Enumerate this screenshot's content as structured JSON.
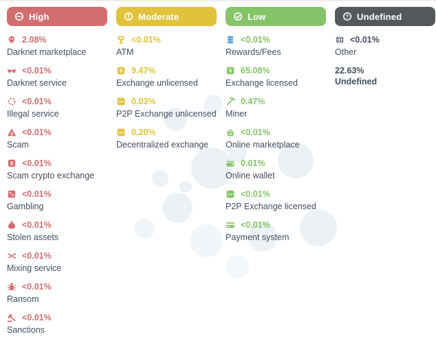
{
  "page": {
    "text_color": "#414d5e",
    "background_color": "#ffffff",
    "decor_circle_color": "#e9eff4"
  },
  "columns": [
    {
      "id": "high",
      "label": "High",
      "color": "#d16e70",
      "badge_icon": "minus-circle-icon",
      "items": [
        {
          "icon": "skull-icon",
          "percent": "2.08%",
          "label": "Darknet marketplace"
        },
        {
          "icon": "mask-icon",
          "percent": "<0.01%",
          "label": "Darknet service"
        },
        {
          "icon": "dashed-circle-icon",
          "percent": "<0.01%",
          "label": "Illegal service"
        },
        {
          "icon": "warning-triangle-icon",
          "percent": "<0.01%",
          "label": "Scam"
        },
        {
          "icon": "dollar-square-icon",
          "percent": "<0.01%",
          "label": "Scam crypto exchange"
        },
        {
          "icon": "dice-icon",
          "percent": "<0.01%",
          "label": "Gambling"
        },
        {
          "icon": "money-bag-icon",
          "percent": "<0.01%",
          "label": "Stolen assets"
        },
        {
          "icon": "shuffle-icon",
          "percent": "<0.01%",
          "label": "Mixing service"
        },
        {
          "icon": "bug-icon",
          "percent": "<0.01%",
          "label": "Ransom"
        },
        {
          "icon": "gavel-icon",
          "percent": "<0.01%",
          "label": "Sanctions"
        }
      ]
    },
    {
      "id": "moderate",
      "label": "Moderate",
      "color": "#e0c33b",
      "badge_icon": "exclamation-circle-icon",
      "items": [
        {
          "icon": "atm-icon",
          "percent": "<0.01%",
          "label": "ATM"
        },
        {
          "icon": "dollar-square-icon",
          "percent": "9.47%",
          "label": "Exchange unlicensed"
        },
        {
          "icon": "p2p-square-icon",
          "percent": "0.03%",
          "label": "P2P Exchange unlicensed"
        },
        {
          "icon": "dex-square-icon",
          "percent": "0.20%",
          "label": "Decentralized exchange"
        }
      ]
    },
    {
      "id": "low",
      "label": "Low",
      "color": "#85c468",
      "badge_icon": "check-circle-icon",
      "items": [
        {
          "icon": "coins-stack-icon",
          "icon_color": "#4b9fd8",
          "percent": "<0.01%",
          "label": "Rewards/Fees"
        },
        {
          "icon": "dollar-square-icon",
          "percent": "65.08%",
          "label": "Exchange licensed"
        },
        {
          "icon": "pickaxe-icon",
          "percent": "0.47%",
          "label": "Miner"
        },
        {
          "icon": "basket-icon",
          "percent": "<0.01%",
          "label": "Online marketplace"
        },
        {
          "icon": "wallet-icon",
          "percent": "0.01%",
          "label": "Online wallet"
        },
        {
          "icon": "p2p-square-icon",
          "percent": "<0.01%",
          "label": "P2P Exchange licensed"
        },
        {
          "icon": "credit-card-icon",
          "percent": "<0.01%",
          "label": "Payment system"
        }
      ]
    },
    {
      "id": "undefined",
      "label": "Undefined",
      "color": "#55585a",
      "badge_icon": "question-circle-icon",
      "items": [
        {
          "icon": "globe-grid-icon",
          "icon_color": "#414d5e",
          "percent": "<0.01%",
          "percent_color": "#414d5e",
          "label": "Other"
        },
        {
          "icon": null,
          "percent": "22.63%",
          "percent_color": "#414d5e",
          "label": "Undefined",
          "plain": true
        }
      ]
    }
  ]
}
